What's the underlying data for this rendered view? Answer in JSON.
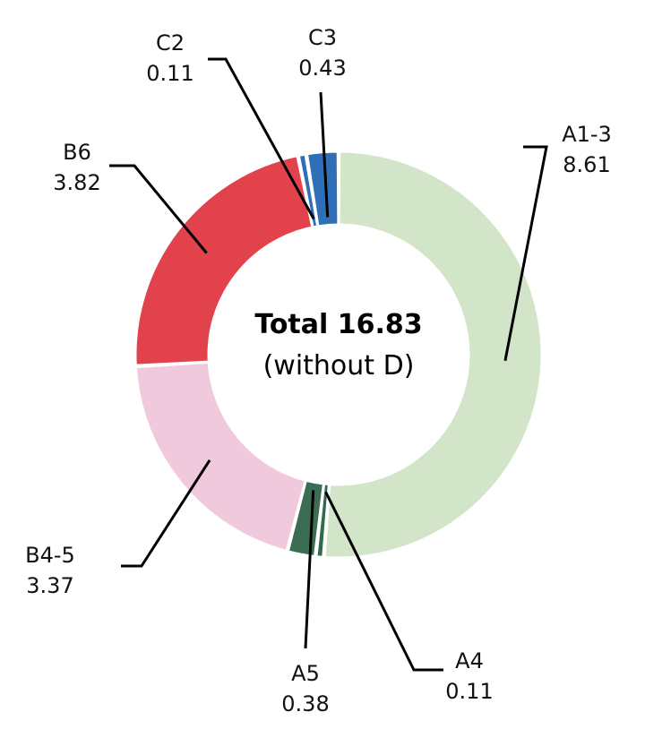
{
  "chart_data": {
    "type": "pie",
    "center_title": "Total 16.83",
    "center_subtitle": "(without D)",
    "slices": [
      {
        "label": "A1-3",
        "value": 8.61,
        "value_text": "8.61",
        "color": "#d3e5c8"
      },
      {
        "label": "A4",
        "value": 0.11,
        "value_text": "0.11",
        "color": "#2f6a4d"
      },
      {
        "label": "A5",
        "value": 0.38,
        "value_text": "0.38",
        "color": "#3b6d52"
      },
      {
        "label": "B4-5",
        "value": 3.37,
        "value_text": "3.37",
        "color": "#f1c9dc"
      },
      {
        "label": "B6",
        "value": 3.82,
        "value_text": "3.82",
        "color": "#e1424c"
      },
      {
        "label": "C2",
        "value": 0.11,
        "value_text": "0.11",
        "color": "#2e6fb7"
      },
      {
        "label": "C3",
        "value": 0.43,
        "value_text": "0.43",
        "color": "#2e6fb7"
      }
    ],
    "legend": "none"
  }
}
